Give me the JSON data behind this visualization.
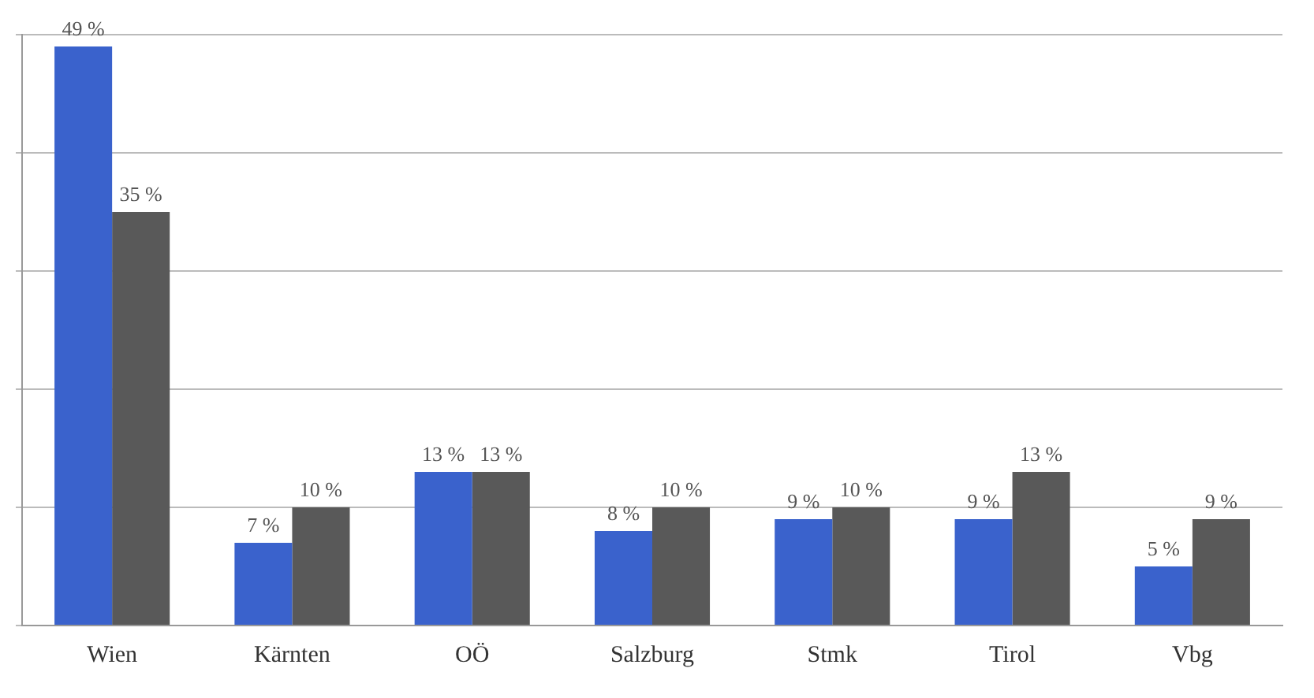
{
  "chart_data": {
    "type": "bar",
    "categories": [
      "Wien",
      "Kärnten",
      "OÖ",
      "Salzburg",
      "Stmk",
      "Tirol",
      "Vbg"
    ],
    "series": [
      {
        "color": "#3a62cc",
        "values": [
          49,
          7,
          13,
          8,
          9,
          9,
          5
        ],
        "value_labels": [
          "49 %",
          "7 %",
          "13 %",
          "8 %",
          "9 %",
          "9 %",
          "5 %"
        ]
      },
      {
        "color": "#595959",
        "values": [
          35,
          10,
          13,
          10,
          10,
          13,
          9
        ],
        "value_labels": [
          "35 %",
          "10 %",
          "13 %",
          "10 %",
          "10 %",
          "13 %",
          "9 %"
        ]
      }
    ],
    "ylim": [
      0,
      50
    ],
    "yticks": [
      {
        "value": 0,
        "label": null
      },
      {
        "value": 10,
        "label": null
      },
      {
        "value": 20,
        "label": null
      },
      {
        "value": 30,
        "label": null
      },
      {
        "value": 40,
        "label": null
      },
      {
        "value": 50,
        "label": null
      }
    ],
    "grid": "y",
    "legend": false,
    "tick_labels": "x"
  }
}
